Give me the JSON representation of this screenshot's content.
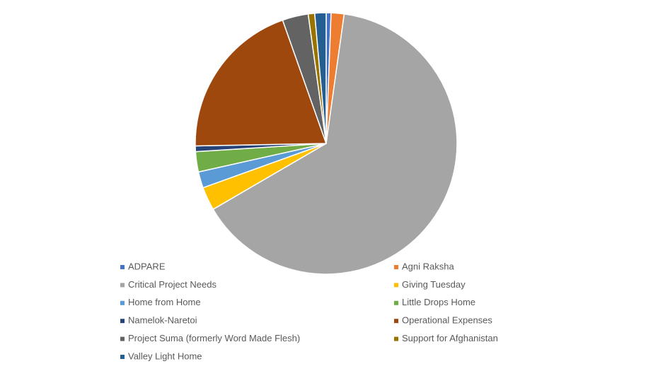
{
  "chart_data": {
    "type": "pie",
    "categories": [
      "ADPARE",
      "Agni Raksha",
      "Critical Project Needs",
      "Giving Tuesday",
      "Home from Home",
      "Little Drops Home",
      "Namelok-Naretoi",
      "Operational Expenses",
      "Project Suma (formerly Word Made Flesh)",
      "Support for Afghanistan",
      "Valley Light Home"
    ],
    "values": [
      0.6,
      1.6,
      64.4,
      2.9,
      2.0,
      2.5,
      0.7,
      19.9,
      3.2,
      0.8,
      1.4
    ],
    "colors": [
      "#4472c4",
      "#ed7d31",
      "#a5a5a5",
      "#ffc000",
      "#5b9bd5",
      "#70ad47",
      "#264478",
      "#9e480e",
      "#636363",
      "#997300",
      "#255e91"
    ],
    "legend": "bottom"
  }
}
